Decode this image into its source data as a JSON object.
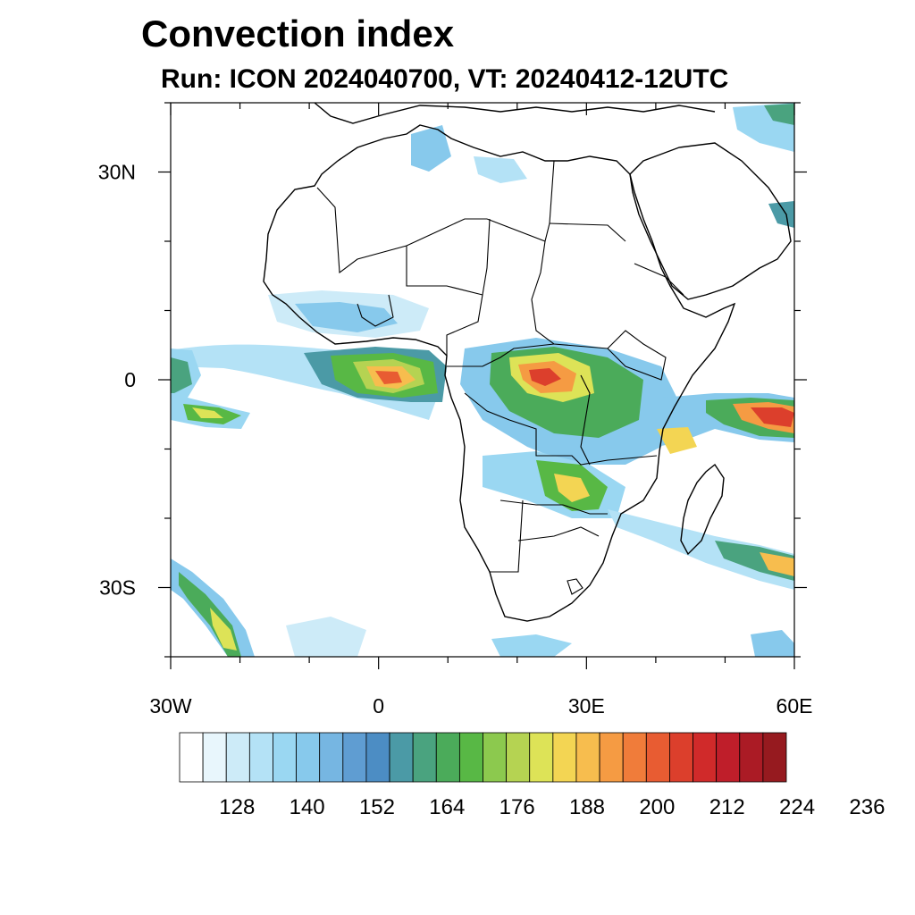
{
  "header": {
    "title": "Convection index",
    "subtitle": "Run: ICON 2024040700,  VT: 20240412-12UTC"
  },
  "map": {
    "lon_range": [
      -30,
      60
    ],
    "lat_range": [
      -40,
      40
    ],
    "x_ticks": [
      {
        "lon": -30,
        "label": "30W"
      },
      {
        "lon": 0,
        "label": "0"
      },
      {
        "lon": 30,
        "label": "30E"
      },
      {
        "lon": 60,
        "label": "60E"
      }
    ],
    "y_ticks": [
      {
        "lat": 30,
        "label": "30N"
      },
      {
        "lat": 0,
        "label": "0"
      },
      {
        "lat": -30,
        "label": "30S"
      }
    ]
  },
  "colorbar": {
    "colors": [
      "#ffffff",
      "#e8f6fc",
      "#cdebf8",
      "#b4e2f6",
      "#9ad7f2",
      "#87c9ec",
      "#76b6e2",
      "#5f9dd2",
      "#4c8dc4",
      "#4b9aa6",
      "#4aa37f",
      "#4bab5a",
      "#58b845",
      "#8cc94e",
      "#b5d352",
      "#dde357",
      "#f3d553",
      "#f7bd4e",
      "#f59b43",
      "#f07c3a",
      "#e85c32",
      "#dc3f2c",
      "#d02a2a",
      "#bf1e2a",
      "#ab1b25",
      "#961a1f"
    ],
    "labels": [
      "128",
      "140",
      "152",
      "164",
      "176",
      "188",
      "200",
      "212",
      "224",
      "236"
    ]
  }
}
